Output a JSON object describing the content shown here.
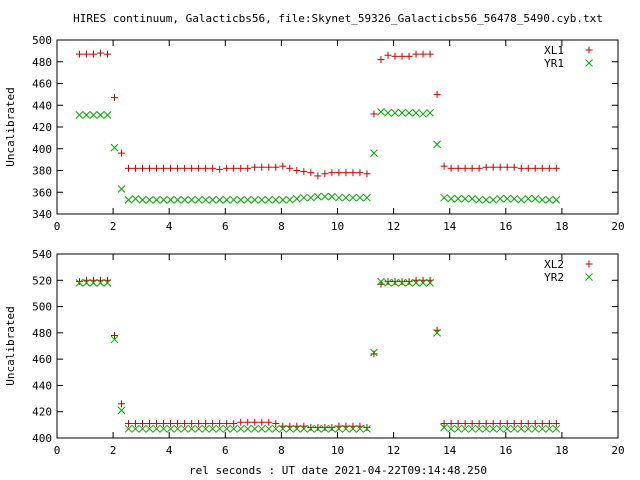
{
  "title": "HIRES continuum, Galacticbs56, file:Skynet_59326_Galacticbs56_56478_5490.cyb.txt",
  "xlabel": "rel seconds : UT date 2021-04-22T09:14:48.250",
  "colors": {
    "series_red": "#cc0000",
    "series_green": "#00aa00"
  },
  "chart_data": [
    {
      "type": "scatter",
      "ylabel": "Uncalibrated",
      "xlim": [
        0,
        20
      ],
      "ylim": [
        340,
        500
      ],
      "xticks": [
        "0",
        "2",
        "4",
        "6",
        "8",
        "10",
        "12",
        "14",
        "16",
        "18",
        "20"
      ],
      "yticks": [
        "340",
        "360",
        "380",
        "400",
        "420",
        "440",
        "460",
        "480",
        "500"
      ],
      "grid": false,
      "legend": "top-right",
      "series": [
        {
          "name": "XL1",
          "marker": "plus",
          "color": "#cc0000",
          "x": [
            0.8,
            1.05,
            1.3,
            1.55,
            1.8,
            2.05,
            2.3,
            2.55,
            2.8,
            3.05,
            3.3,
            3.55,
            3.8,
            4.05,
            4.3,
            4.55,
            4.8,
            5.05,
            5.3,
            5.55,
            5.8,
            6.05,
            6.3,
            6.55,
            6.8,
            7.05,
            7.3,
            7.55,
            7.8,
            8.05,
            8.3,
            8.55,
            8.8,
            9.05,
            9.3,
            9.55,
            9.8,
            10.05,
            10.3,
            10.55,
            10.8,
            11.05,
            11.3,
            11.55,
            11.8,
            12.05,
            12.3,
            12.55,
            12.8,
            13.05,
            13.3,
            13.55,
            13.8,
            14.05,
            14.3,
            14.55,
            14.8,
            15.05,
            15.3,
            15.55,
            15.8,
            16.05,
            16.3,
            16.55,
            16.8,
            17.05,
            17.3,
            17.55,
            17.8
          ],
          "y": [
            487,
            487,
            487,
            488,
            487,
            447,
            396,
            382,
            382,
            382,
            382,
            382,
            382,
            382,
            382,
            382,
            382,
            382,
            382,
            382,
            381,
            382,
            382,
            382,
            382,
            383,
            383,
            383,
            383,
            384,
            382,
            380,
            379,
            378,
            375,
            377,
            378,
            378,
            378,
            378,
            378,
            377,
            432,
            482,
            486,
            485,
            485,
            485,
            487,
            487,
            487,
            450,
            384,
            382,
            382,
            382,
            382,
            382,
            383,
            383,
            383,
            383,
            383,
            382,
            382,
            382,
            382,
            382,
            382
          ]
        },
        {
          "name": "YR1",
          "marker": "cross",
          "color": "#00aa00",
          "x": [
            0.8,
            1.05,
            1.3,
            1.55,
            1.8,
            2.05,
            2.3,
            2.55,
            2.8,
            3.05,
            3.3,
            3.55,
            3.8,
            4.05,
            4.3,
            4.55,
            4.8,
            5.05,
            5.3,
            5.55,
            5.8,
            6.05,
            6.3,
            6.55,
            6.8,
            7.05,
            7.3,
            7.55,
            7.8,
            8.05,
            8.3,
            8.55,
            8.8,
            9.05,
            9.3,
            9.55,
            9.8,
            10.05,
            10.3,
            10.55,
            10.8,
            11.05,
            11.3,
            11.55,
            11.8,
            12.05,
            12.3,
            12.55,
            12.8,
            13.05,
            13.3,
            13.55,
            13.8,
            14.05,
            14.3,
            14.55,
            14.8,
            15.05,
            15.3,
            15.55,
            15.8,
            16.05,
            16.3,
            16.55,
            16.8,
            17.05,
            17.3,
            17.55,
            17.8
          ],
          "y": [
            431,
            431,
            431,
            431,
            431,
            401,
            363,
            353,
            354,
            353,
            353,
            353,
            353,
            353,
            353,
            353,
            353,
            353,
            353,
            353,
            353,
            353,
            353,
            353,
            353,
            353,
            353,
            353,
            353,
            353,
            353,
            354,
            355,
            355,
            356,
            356,
            356,
            355,
            355,
            355,
            355,
            355,
            396,
            434,
            433,
            433,
            433,
            433,
            433,
            432,
            433,
            404,
            355,
            354,
            354,
            354,
            354,
            353,
            353,
            353,
            354,
            354,
            354,
            353,
            354,
            354,
            353,
            353,
            353
          ]
        }
      ]
    },
    {
      "type": "scatter",
      "ylabel": "Uncalibrated",
      "xlim": [
        0,
        20
      ],
      "ylim": [
        400,
        540
      ],
      "xticks": [
        "0",
        "2",
        "4",
        "6",
        "8",
        "10",
        "12",
        "14",
        "16",
        "18",
        "20"
      ],
      "yticks": [
        "400",
        "420",
        "440",
        "460",
        "480",
        "500",
        "520",
        "540"
      ],
      "grid": false,
      "legend": "top-right",
      "series": [
        {
          "name": "XL2",
          "marker": "plus",
          "color": "#cc0000",
          "x": [
            0.8,
            1.05,
            1.3,
            1.55,
            1.8,
            2.05,
            2.3,
            2.55,
            2.8,
            3.05,
            3.3,
            3.55,
            3.8,
            4.05,
            4.3,
            4.55,
            4.8,
            5.05,
            5.3,
            5.55,
            5.8,
            6.05,
            6.3,
            6.55,
            6.8,
            7.05,
            7.3,
            7.55,
            7.8,
            8.05,
            8.3,
            8.55,
            8.8,
            9.05,
            9.3,
            9.55,
            9.8,
            10.05,
            10.3,
            10.55,
            10.8,
            11.05,
            11.3,
            11.55,
            11.8,
            12.05,
            12.3,
            12.55,
            12.8,
            13.05,
            13.3,
            13.55,
            13.8,
            14.05,
            14.3,
            14.55,
            14.8,
            15.05,
            15.3,
            15.55,
            15.8,
            16.05,
            16.3,
            16.55,
            16.8,
            17.05,
            17.3,
            17.55,
            17.8
          ],
          "y": [
            519,
            520,
            520,
            520,
            520,
            478,
            426,
            411,
            411,
            411,
            411,
            411,
            411,
            411,
            411,
            411,
            411,
            411,
            411,
            411,
            411,
            411,
            411,
            412,
            412,
            412,
            412,
            412,
            411,
            409,
            409,
            409,
            409,
            408,
            408,
            408,
            408,
            409,
            409,
            409,
            409,
            408,
            464,
            517,
            519,
            519,
            519,
            519,
            520,
            520,
            520,
            482,
            411,
            411,
            411,
            411,
            411,
            411,
            411,
            411,
            411,
            411,
            411,
            411,
            411,
            411,
            411,
            411,
            411
          ]
        },
        {
          "name": "YR2",
          "marker": "cross",
          "color": "#00aa00",
          "x": [
            0.8,
            1.05,
            1.3,
            1.55,
            1.8,
            2.05,
            2.3,
            2.55,
            2.8,
            3.05,
            3.3,
            3.55,
            3.8,
            4.05,
            4.3,
            4.55,
            4.8,
            5.05,
            5.3,
            5.55,
            5.8,
            6.05,
            6.3,
            6.55,
            6.8,
            7.05,
            7.3,
            7.55,
            7.8,
            8.05,
            8.3,
            8.55,
            8.8,
            9.05,
            9.3,
            9.55,
            9.8,
            10.05,
            10.3,
            10.55,
            10.8,
            11.05,
            11.3,
            11.55,
            11.8,
            12.05,
            12.3,
            12.55,
            12.8,
            13.05,
            13.3,
            13.55,
            13.8,
            14.05,
            14.3,
            14.55,
            14.8,
            15.05,
            15.3,
            15.55,
            15.8,
            16.05,
            16.3,
            16.55,
            16.8,
            17.05,
            17.3,
            17.55,
            17.8
          ],
          "y": [
            518,
            518,
            518,
            518,
            518,
            475,
            421,
            407,
            407,
            407,
            407,
            407,
            407,
            407,
            407,
            407,
            407,
            407,
            407,
            407,
            407,
            407,
            407,
            407,
            407,
            407,
            407,
            407,
            407,
            407,
            407,
            407,
            407,
            407,
            407,
            407,
            407,
            407,
            407,
            407,
            407,
            407,
            465,
            519,
            518,
            518,
            518,
            518,
            518,
            518,
            518,
            480,
            408,
            407,
            407,
            407,
            407,
            407,
            407,
            407,
            407,
            407,
            407,
            407,
            407,
            407,
            407,
            407,
            407
          ]
        }
      ]
    }
  ]
}
